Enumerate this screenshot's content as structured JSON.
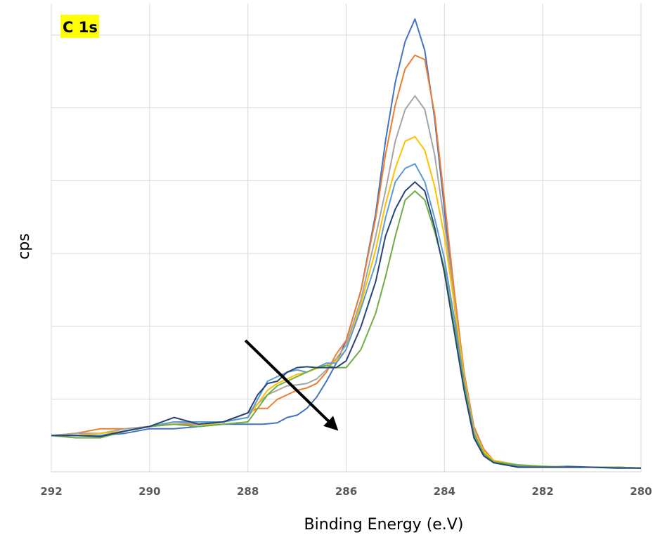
{
  "chart_data": {
    "type": "line",
    "title": "C 1s",
    "xlabel": "Binding Energy (e.V)",
    "ylabel": "cps",
    "x_reversed": true,
    "xlim": [
      292,
      280
    ],
    "ylim": [
      0,
      100
    ],
    "y_tick_labels_shown": false,
    "x_ticks": [
      "292",
      "290",
      "288",
      "286",
      "284",
      "282",
      "280"
    ],
    "grid": "both",
    "legend": "none",
    "annotation": {
      "type": "arrow",
      "from": [
        288.05,
        29
      ],
      "to": [
        286.2,
        9.5
      ]
    },
    "title_highlight_color": "#FFFF00",
    "series_colors": [
      "#4472C4",
      "#ED7D31",
      "#A5A5A5",
      "#FFC000",
      "#5B9BD5",
      "#70AD47",
      "#264478"
    ],
    "series": [
      {
        "color": "#4472C4",
        "x": [
          292,
          291.5,
          291,
          290.5,
          290,
          289.5,
          289,
          288.5,
          288,
          287.7,
          287.4,
          287.2,
          287,
          286.8,
          286.6,
          286.4,
          286.2,
          286,
          285.7,
          285.4,
          285.2,
          285,
          284.8,
          284.6,
          284.4,
          284.2,
          284,
          283.8,
          283.6,
          283.4,
          283.2,
          283,
          282.5,
          282,
          281.5,
          281,
          280.5,
          280
        ],
        "y": [
          8,
          8,
          8,
          8.5,
          9.5,
          9.5,
          10,
          10.5,
          10.5,
          10.5,
          10.8,
          12,
          12.5,
          14,
          16.5,
          20,
          24,
          29,
          40,
          57,
          73,
          86,
          95,
          100,
          93,
          78,
          58,
          37,
          19,
          8,
          4,
          2.2,
          1.2,
          1,
          1.2,
          1,
          1,
          0.8
        ]
      },
      {
        "color": "#ED7D31",
        "x": [
          292,
          291.5,
          291,
          290.5,
          290,
          289.5,
          289,
          288.5,
          288,
          287.8,
          287.6,
          287.4,
          287.2,
          287,
          286.8,
          286.6,
          286.4,
          286.2,
          286,
          285.7,
          285.4,
          285.2,
          285,
          284.8,
          284.6,
          284.4,
          284.2,
          284,
          283.8,
          283.6,
          283.4,
          283.2,
          283,
          282.5,
          282,
          281.5,
          281,
          280.5,
          280
        ],
        "y": [
          8,
          8.5,
          9.5,
          9.5,
          10,
          10.5,
          10.5,
          11,
          13,
          14,
          14,
          16,
          17,
          18,
          18.5,
          19.5,
          22,
          26,
          29,
          40,
          56,
          70,
          81,
          89,
          92,
          91,
          79,
          60,
          40,
          22,
          10,
          5,
          2.5,
          1.5,
          1.2,
          1,
          1,
          1,
          0.8
        ]
      },
      {
        "color": "#A5A5A5",
        "x": [
          292,
          291.5,
          291,
          290.5,
          290,
          289.5,
          289,
          288.5,
          288,
          287.8,
          287.6,
          287.4,
          287.2,
          287,
          286.8,
          286.6,
          286.4,
          286.2,
          286,
          285.7,
          285.4,
          285.2,
          285,
          284.8,
          284.6,
          284.4,
          284.2,
          284,
          283.8,
          283.6,
          283.4,
          283.2,
          283,
          282.5,
          282,
          281.5,
          281,
          280.5,
          280
        ],
        "y": [
          8,
          8.5,
          8.5,
          9.5,
          10,
          11,
          10.5,
          11,
          13,
          15,
          17,
          18,
          19,
          19.2,
          19.5,
          20.5,
          22.5,
          25,
          28,
          38,
          52,
          62,
          73,
          80,
          83,
          80,
          70,
          55,
          38,
          21,
          9.5,
          4.5,
          2.5,
          1.5,
          1.2,
          1,
          1,
          1,
          0.8
        ]
      },
      {
        "color": "#FFC000",
        "x": [
          292,
          291.5,
          291,
          290.5,
          290,
          289.5,
          289,
          288.5,
          288,
          287.8,
          287.6,
          287.4,
          287.2,
          287,
          286.8,
          286.6,
          286.4,
          286.2,
          286,
          285.7,
          285.4,
          285.2,
          285,
          284.8,
          284.6,
          284.4,
          284.2,
          284,
          283.8,
          283.6,
          283.4,
          283.2,
          283,
          282.5,
          282,
          281.5,
          281,
          280.5,
          280
        ],
        "y": [
          8,
          8,
          8.5,
          9,
          10,
          10.5,
          10,
          11,
          12,
          15,
          18,
          19.5,
          20.5,
          21.5,
          22,
          22.8,
          23.5,
          24.5,
          27,
          37,
          49,
          59,
          67,
          73,
          74,
          71,
          63,
          52,
          37,
          21,
          9,
          4.5,
          2.5,
          1.5,
          1.2,
          1,
          1,
          1,
          0.8
        ]
      },
      {
        "color": "#5B9BD5",
        "x": [
          292,
          291.5,
          291,
          290.5,
          290,
          289.5,
          289,
          288.5,
          288,
          287.8,
          287.6,
          287.4,
          287.2,
          287,
          286.8,
          286.6,
          286.4,
          286.2,
          286,
          285.7,
          285.4,
          285.2,
          285,
          284.8,
          284.6,
          284.4,
          284.2,
          284,
          283.8,
          283.6,
          283.4,
          283.2,
          283,
          282.5,
          282,
          281.5,
          281,
          280.5,
          280
        ],
        "y": [
          8,
          8,
          8,
          9,
          10,
          11,
          11,
          11,
          12,
          16,
          20,
          21,
          22,
          22.5,
          22,
          23,
          24,
          24,
          27,
          36,
          46,
          56,
          64,
          67,
          68,
          64,
          56,
          47,
          34,
          20,
          8.5,
          4,
          2,
          1.2,
          1,
          1,
          1,
          1,
          0.8
        ]
      },
      {
        "color": "#70AD47",
        "x": [
          292,
          291.5,
          291,
          290.5,
          290,
          289.5,
          289,
          288.5,
          288,
          287.8,
          287.6,
          287.4,
          287.2,
          287,
          286.8,
          286.6,
          286.4,
          286.2,
          286,
          285.7,
          285.4,
          285.2,
          285,
          284.8,
          284.6,
          284.4,
          284.2,
          284,
          283.8,
          283.6,
          283.4,
          283.2,
          283,
          282.5,
          282,
          281.5,
          281,
          280.5,
          280
        ],
        "y": [
          8,
          7.5,
          7.5,
          9,
          10,
          10.5,
          10,
          10.5,
          11,
          14,
          17,
          19,
          20,
          21,
          22,
          23,
          23.5,
          23,
          23,
          27,
          35,
          43,
          52,
          60,
          62,
          60,
          53,
          45,
          32,
          19,
          8,
          4,
          2.2,
          1.5,
          1.2,
          1,
          1,
          1,
          0.8
        ]
      },
      {
        "color": "#264478",
        "x": [
          292,
          291.5,
          291,
          290.5,
          290,
          289.5,
          289,
          288.5,
          288,
          287.8,
          287.6,
          287.4,
          287.2,
          287,
          286.8,
          286.6,
          286.4,
          286.2,
          286,
          285.7,
          285.4,
          285.2,
          285,
          284.8,
          284.6,
          284.4,
          284.2,
          284,
          283.8,
          283.6,
          283.4,
          283.2,
          283,
          282.5,
          282,
          281.5,
          281,
          280.5,
          280
        ],
        "y": [
          8,
          8,
          7.8,
          9,
          10,
          12,
          10.5,
          11,
          13,
          17,
          19.5,
          20,
          22,
          23,
          23.2,
          23,
          23,
          23,
          24.5,
          32,
          42,
          52,
          58,
          62,
          64,
          62,
          54,
          44,
          31,
          18,
          7.5,
          3.5,
          2,
          1,
          1,
          1,
          1,
          0.8,
          0.8
        ]
      }
    ]
  }
}
